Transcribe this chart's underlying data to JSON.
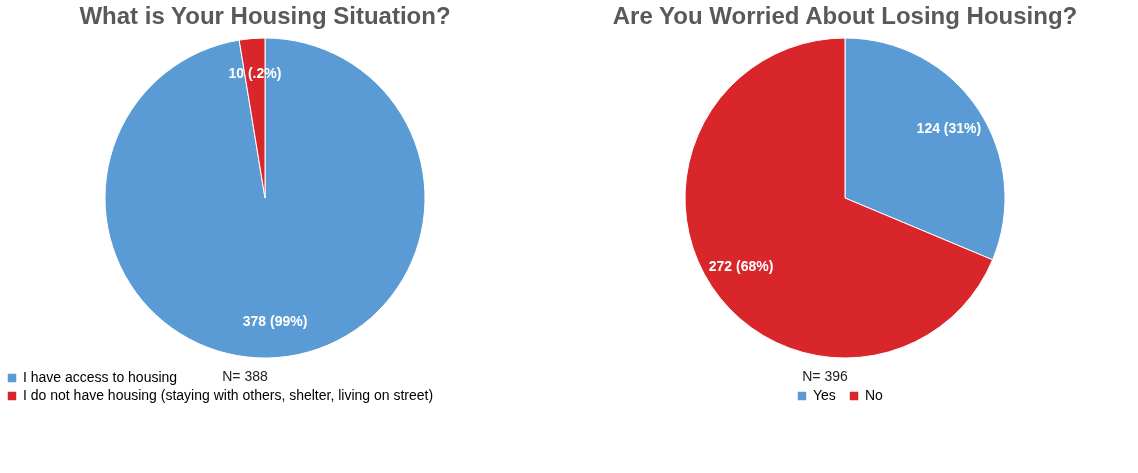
{
  "chart_data": [
    {
      "type": "pie",
      "title": "What is Your Housing Situation?",
      "categories": [
        "I have access to housing",
        "I do not have housing (staying with others, shelter, living on street)"
      ],
      "values": [
        378,
        10
      ],
      "colors": [
        "#5b9bd5",
        "#d9262b"
      ],
      "value_labels": [
        "378 (99%)",
        "10 (.2%)"
      ],
      "legend": "bottom left",
      "annotations": [
        "N= 388"
      ]
    },
    {
      "type": "pie",
      "title": "Are You Worried About Losing Housing?",
      "categories": [
        "Yes",
        "No"
      ],
      "values": [
        124,
        272
      ],
      "colors": [
        "#5b9bd5",
        "#d9262b"
      ],
      "value_labels": [
        "124 (31%)",
        "272 (68%)"
      ],
      "legend": "bottom",
      "annotations": [
        "N= 396"
      ]
    }
  ]
}
